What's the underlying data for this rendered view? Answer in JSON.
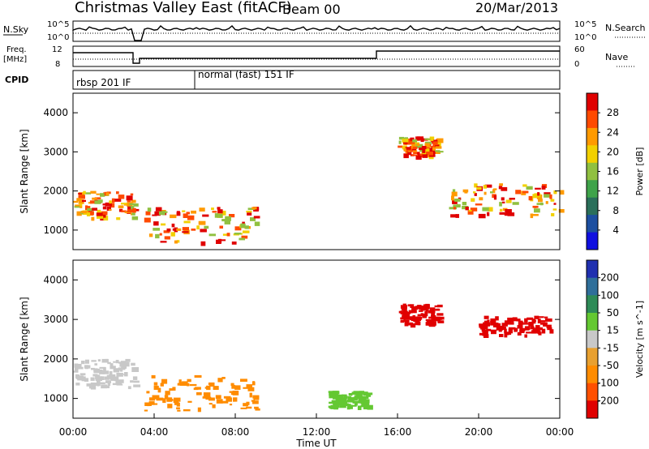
{
  "header": {
    "title": "Christmas Valley East (fitACF)",
    "beam": "Beam 00",
    "date": "20/Mar/2013"
  },
  "top_panels": {
    "nsky_label": "N.Sky",
    "nsky_ticks": [
      "10^5",
      "10^0"
    ],
    "nsearch_label": "N.Search",
    "nsearch_ticks": [
      "10^5",
      "10^0"
    ],
    "freq_label_1": "Freq.",
    "freq_label_2": "[MHz]",
    "freq_ticks": [
      "12",
      "8"
    ],
    "nave_label": "Nave",
    "nave_ticks": [
      "60",
      "0"
    ],
    "cpid_label": "CPID",
    "cpid_segments": [
      "rbsp 201 IF",
      "normal (fast) 151 IF"
    ]
  },
  "chart_data": [
    {
      "type": "heatmap",
      "name": "power-panel",
      "ylabel": "Slant Range [km]",
      "xlabel": "",
      "x_ticks": [
        "00:00",
        "04:00",
        "08:00",
        "12:00",
        "16:00",
        "20:00",
        "00:00"
      ],
      "y_ticks": [
        1000,
        2000,
        3000,
        4000
      ],
      "ylim": [
        500,
        4500
      ],
      "colorbar": {
        "label": "Power [dB]",
        "ticks": [
          28,
          24,
          20,
          16,
          12,
          8,
          4
        ],
        "colors": [
          "#e00000",
          "#ff4a00",
          "#ff9a00",
          "#f2d000",
          "#90c040",
          "#3fa34a",
          "#2a6f5a",
          "#1c4fa0",
          "#1010e0"
        ]
      },
      "features": [
        {
          "region": "near range band",
          "start_ut": "00:00",
          "end_ut": "03:00",
          "range_km": [
            1300,
            2000
          ],
          "power_db": 26
        },
        {
          "region": "patch",
          "start_ut": "03:30",
          "end_ut": "09:00",
          "range_km": [
            700,
            1600
          ],
          "power_db": 24
        },
        {
          "region": "scatter",
          "start_ut": "16:00",
          "end_ut": "18:00",
          "range_km": [
            2900,
            3400
          ],
          "power_db": 20
        },
        {
          "region": "band",
          "start_ut": "18:30",
          "end_ut": "24:00",
          "range_km": [
            1400,
            2200
          ],
          "power_db": 24
        }
      ]
    },
    {
      "type": "heatmap",
      "name": "velocity-panel",
      "ylabel": "Slant Range [km]",
      "xlabel": "Time UT",
      "x_ticks": [
        "00:00",
        "04:00",
        "08:00",
        "12:00",
        "16:00",
        "20:00",
        "00:00"
      ],
      "y_ticks": [
        1000,
        2000,
        3000,
        4000
      ],
      "ylim": [
        500,
        4500
      ],
      "colorbar": {
        "label": "Velocity [m s^-1]",
        "ticks": [
          200,
          100,
          50,
          15,
          -15,
          -50,
          -100,
          -200
        ],
        "colors": [
          "#2030b0",
          "#2f6f9a",
          "#2e8b57",
          "#64c832",
          "#c8c8c8",
          "#e8a030",
          "#ff8c00",
          "#ff5000",
          "#e00000"
        ]
      },
      "features": [
        {
          "region": "ground scatter",
          "start_ut": "00:00",
          "end_ut": "03:00",
          "range_km": [
            1300,
            2000
          ],
          "velocity": 0
        },
        {
          "region": "patch",
          "start_ut": "03:30",
          "end_ut": "09:00",
          "range_km": [
            700,
            1600
          ],
          "velocity": -60
        },
        {
          "region": "green patch",
          "start_ut": "12:30",
          "end_ut": "14:30",
          "range_km": [
            800,
            1200
          ],
          "velocity": 60
        },
        {
          "region": "red scatter",
          "start_ut": "16:00",
          "end_ut": "18:00",
          "range_km": [
            2900,
            3400
          ],
          "velocity": -200
        },
        {
          "region": "red scatter",
          "start_ut": "20:00",
          "end_ut": "23:30",
          "range_km": [
            2600,
            3100
          ],
          "velocity": -200
        }
      ]
    }
  ]
}
